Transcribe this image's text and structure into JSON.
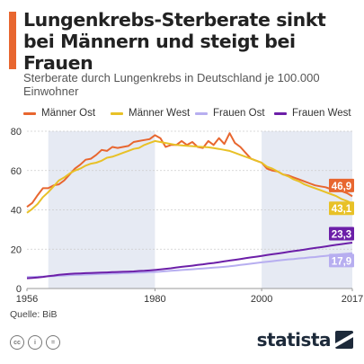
{
  "header": {
    "title": "Lungenkrebs-Sterberate sinkt bei Männern und steigt bei Frauen",
    "subtitle": "Sterberate durch Lungenkrebs in Deutschland je 100.000 Einwohner"
  },
  "colors": {
    "accent": "#e8662f",
    "shade": "#e6eaf3",
    "grid": "#cccccc"
  },
  "chart_data": {
    "type": "line",
    "title": "Lungenkrebs-Sterberate sinkt bei Männern und steigt bei Frauen",
    "subtitle": "Sterberate durch Lungenkrebs in Deutschland je 100.000 Einwohner",
    "xlabel": "",
    "ylabel": "",
    "xlim": [
      1956,
      2017
    ],
    "ylim": [
      0,
      80
    ],
    "y_ticks": [
      0,
      20,
      40,
      60,
      80
    ],
    "x_ticks": [
      "1956",
      "1980",
      "2000",
      "2017"
    ],
    "grid": true,
    "legend_position": "top",
    "shaded_bands": [
      [
        1960,
        1980
      ],
      [
        2000,
        2017
      ]
    ],
    "x": [
      1956,
      1957,
      1958,
      1959,
      1960,
      1961,
      1962,
      1963,
      1964,
      1965,
      1966,
      1967,
      1968,
      1969,
      1970,
      1971,
      1972,
      1973,
      1974,
      1975,
      1976,
      1977,
      1978,
      1979,
      1980,
      1981,
      1982,
      1983,
      1984,
      1985,
      1986,
      1987,
      1988,
      1989,
      1990,
      1991,
      1992,
      1993,
      1994,
      1995,
      1996,
      1997,
      1998,
      1999,
      2000,
      2001,
      2002,
      2003,
      2004,
      2005,
      2006,
      2007,
      2008,
      2009,
      2010,
      2011,
      2012,
      2013,
      2014,
      2015,
      2016,
      2017
    ],
    "series": [
      {
        "name": "Männer Ost",
        "color": "#e8662f",
        "end_label": "46,9",
        "values": [
          41.5,
          43.5,
          47.5,
          51.0,
          51.0,
          52.5,
          53.0,
          55.0,
          58.0,
          61.0,
          63.0,
          65.5,
          66.0,
          68.0,
          70.5,
          70.0,
          72.0,
          71.5,
          72.0,
          72.5,
          74.5,
          75.0,
          75.5,
          76.0,
          78.0,
          76.5,
          72.0,
          73.0,
          73.0,
          75.0,
          73.0,
          74.5,
          72.0,
          71.5,
          75.0,
          73.0,
          76.5,
          73.5,
          79.0,
          74.0,
          72.0,
          69.0,
          66.0,
          65.0,
          64.0,
          61.0,
          60.0,
          59.5,
          58.0,
          57.5,
          56.5,
          55.5,
          54.5,
          53.5,
          52.5,
          52.0,
          51.5,
          50.5,
          50.0,
          49.5,
          48.5,
          46.9
        ]
      },
      {
        "name": "Männer West",
        "color": "#e8c127",
        "end_label": "43,1",
        "values": [
          38.5,
          40.5,
          43.0,
          46.5,
          49.0,
          52.0,
          55.0,
          56.5,
          58.5,
          60.0,
          61.0,
          62.5,
          63.5,
          64.0,
          65.0,
          66.5,
          67.0,
          68.0,
          69.0,
          70.0,
          71.0,
          71.5,
          73.0,
          74.0,
          75.0,
          74.5,
          74.0,
          73.5,
          73.0,
          72.8,
          72.6,
          72.4,
          72.2,
          72.0,
          71.8,
          71.4,
          71.0,
          70.5,
          70.0,
          69.0,
          68.0,
          67.0,
          66.0,
          65.0,
          64.0,
          62.0,
          61.0,
          59.5,
          58.0,
          57.0,
          55.5,
          54.5,
          53.0,
          52.0,
          51.0,
          50.0,
          49.0,
          48.0,
          47.0,
          45.5,
          44.5,
          43.1
        ]
      },
      {
        "name": "Frauen Ost",
        "color": "#b7aef0",
        "end_label": "17,9",
        "values": [
          5.8,
          5.9,
          6.0,
          6.1,
          6.2,
          6.3,
          6.5,
          6.6,
          6.8,
          6.9,
          7.0,
          7.1,
          7.2,
          7.3,
          7.4,
          7.5,
          7.6,
          7.7,
          7.8,
          7.9,
          8.0,
          8.1,
          8.2,
          8.3,
          8.4,
          8.6,
          8.8,
          9.0,
          9.2,
          9.4,
          9.6,
          9.8,
          10.0,
          10.2,
          10.4,
          10.6,
          10.8,
          11.0,
          11.3,
          11.6,
          12.0,
          12.3,
          12.6,
          13.0,
          13.3,
          13.6,
          13.9,
          14.2,
          14.5,
          14.8,
          15.0,
          15.3,
          15.5,
          15.8,
          16.0,
          16.3,
          16.6,
          16.9,
          17.2,
          17.5,
          17.7,
          17.9
        ]
      },
      {
        "name": "Frauen West",
        "color": "#6c1fa8",
        "end_label": "23,3",
        "values": [
          5.2,
          5.4,
          5.6,
          5.9,
          6.3,
          6.6,
          7.0,
          7.2,
          7.4,
          7.6,
          7.7,
          7.8,
          7.9,
          8.0,
          8.1,
          8.2,
          8.3,
          8.4,
          8.5,
          8.6,
          8.7,
          8.9,
          9.0,
          9.2,
          9.4,
          9.7,
          10.0,
          10.3,
          10.7,
          11.0,
          11.3,
          11.6,
          12.0,
          12.3,
          12.7,
          13.0,
          13.4,
          13.8,
          14.2,
          14.6,
          15.0,
          15.4,
          15.8,
          16.2,
          16.6,
          17.0,
          17.4,
          17.8,
          18.2,
          18.6,
          19.0,
          19.4,
          19.8,
          20.2,
          20.6,
          21.0,
          21.4,
          21.8,
          22.2,
          22.6,
          23.0,
          23.3
        ]
      }
    ]
  },
  "footer": {
    "source": "Quelle: BiB",
    "brand": "statista",
    "license_icons": [
      "cc-icon",
      "by-icon",
      "nd-icon"
    ]
  }
}
